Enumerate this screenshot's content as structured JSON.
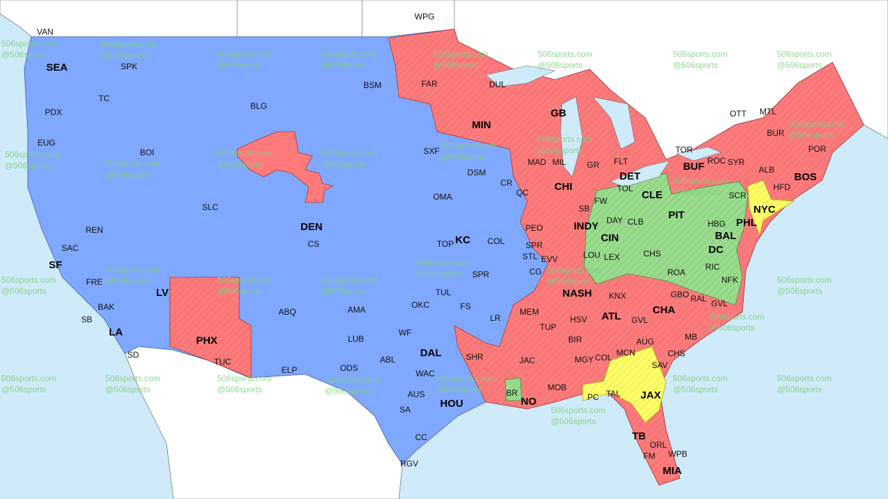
{
  "map": {
    "colors": {
      "water": "#cfeaf9",
      "land": "#ffffff",
      "blue": "#80a8ff",
      "red": "#ff7b7b",
      "green": "#98dc8c",
      "yellow": "#ffff66"
    },
    "watermark": {
      "line1": "506sports.com",
      "line2": "@506sports"
    },
    "team_markets": [
      "SEA",
      "SF",
      "LV",
      "LA",
      "PHX",
      "DEN",
      "KC",
      "DAL",
      "HOU",
      "MIN",
      "GB",
      "CHI",
      "DET",
      "INDY",
      "CIN",
      "CLE",
      "PIT",
      "BUF",
      "NYC",
      "PHL",
      "BAL",
      "DC",
      "BOS",
      "NASH",
      "CHA",
      "ATL",
      "NO",
      "JAX",
      "TB",
      "MIA"
    ],
    "cities": [
      "VAN",
      "WPG",
      "SPK",
      "TC",
      "PDX",
      "EUG",
      "BOI",
      "BLG",
      "BSM",
      "FAR",
      "DUL",
      "SAC",
      "REN",
      "SLC",
      "CS",
      "FRE",
      "BAK",
      "SB",
      "SD",
      "ABQ",
      "ELP",
      "TUC",
      "AMA",
      "LUB",
      "ODS",
      "ABL",
      "WF",
      "OKC",
      "TUL",
      "WAC",
      "AUS",
      "SA",
      "CC",
      "RGV",
      "TOP",
      "COL",
      "SPR",
      "FS",
      "LR",
      "SHR",
      "OMA",
      "DSM",
      "CR",
      "QC",
      "PEO",
      "SPR",
      "STL",
      "CG",
      "EVV",
      "LOU",
      "LEX",
      "SB",
      "FW",
      "DAY",
      "CLB",
      "TOL",
      "FLT",
      "GR",
      "MAD",
      "MIL",
      "SXF",
      "CHS",
      "ROA",
      "HBG",
      "SCR",
      "ALB",
      "HFD",
      "ROC",
      "SYR",
      "BUR",
      "POR",
      "TOR",
      "OTT",
      "MTL",
      "RIC",
      "NFK",
      "GBO",
      "RAL",
      "GVL",
      "KNX",
      "MEM",
      "TUP",
      "HSV",
      "BIR",
      "MGY",
      "JAC",
      "MOB",
      "BR",
      "COL",
      "MCN",
      "AUG",
      "GVL",
      "CHS",
      "MB",
      "SAV",
      "PC",
      "TAL",
      "ORL",
      "FM",
      "WPB"
    ]
  }
}
